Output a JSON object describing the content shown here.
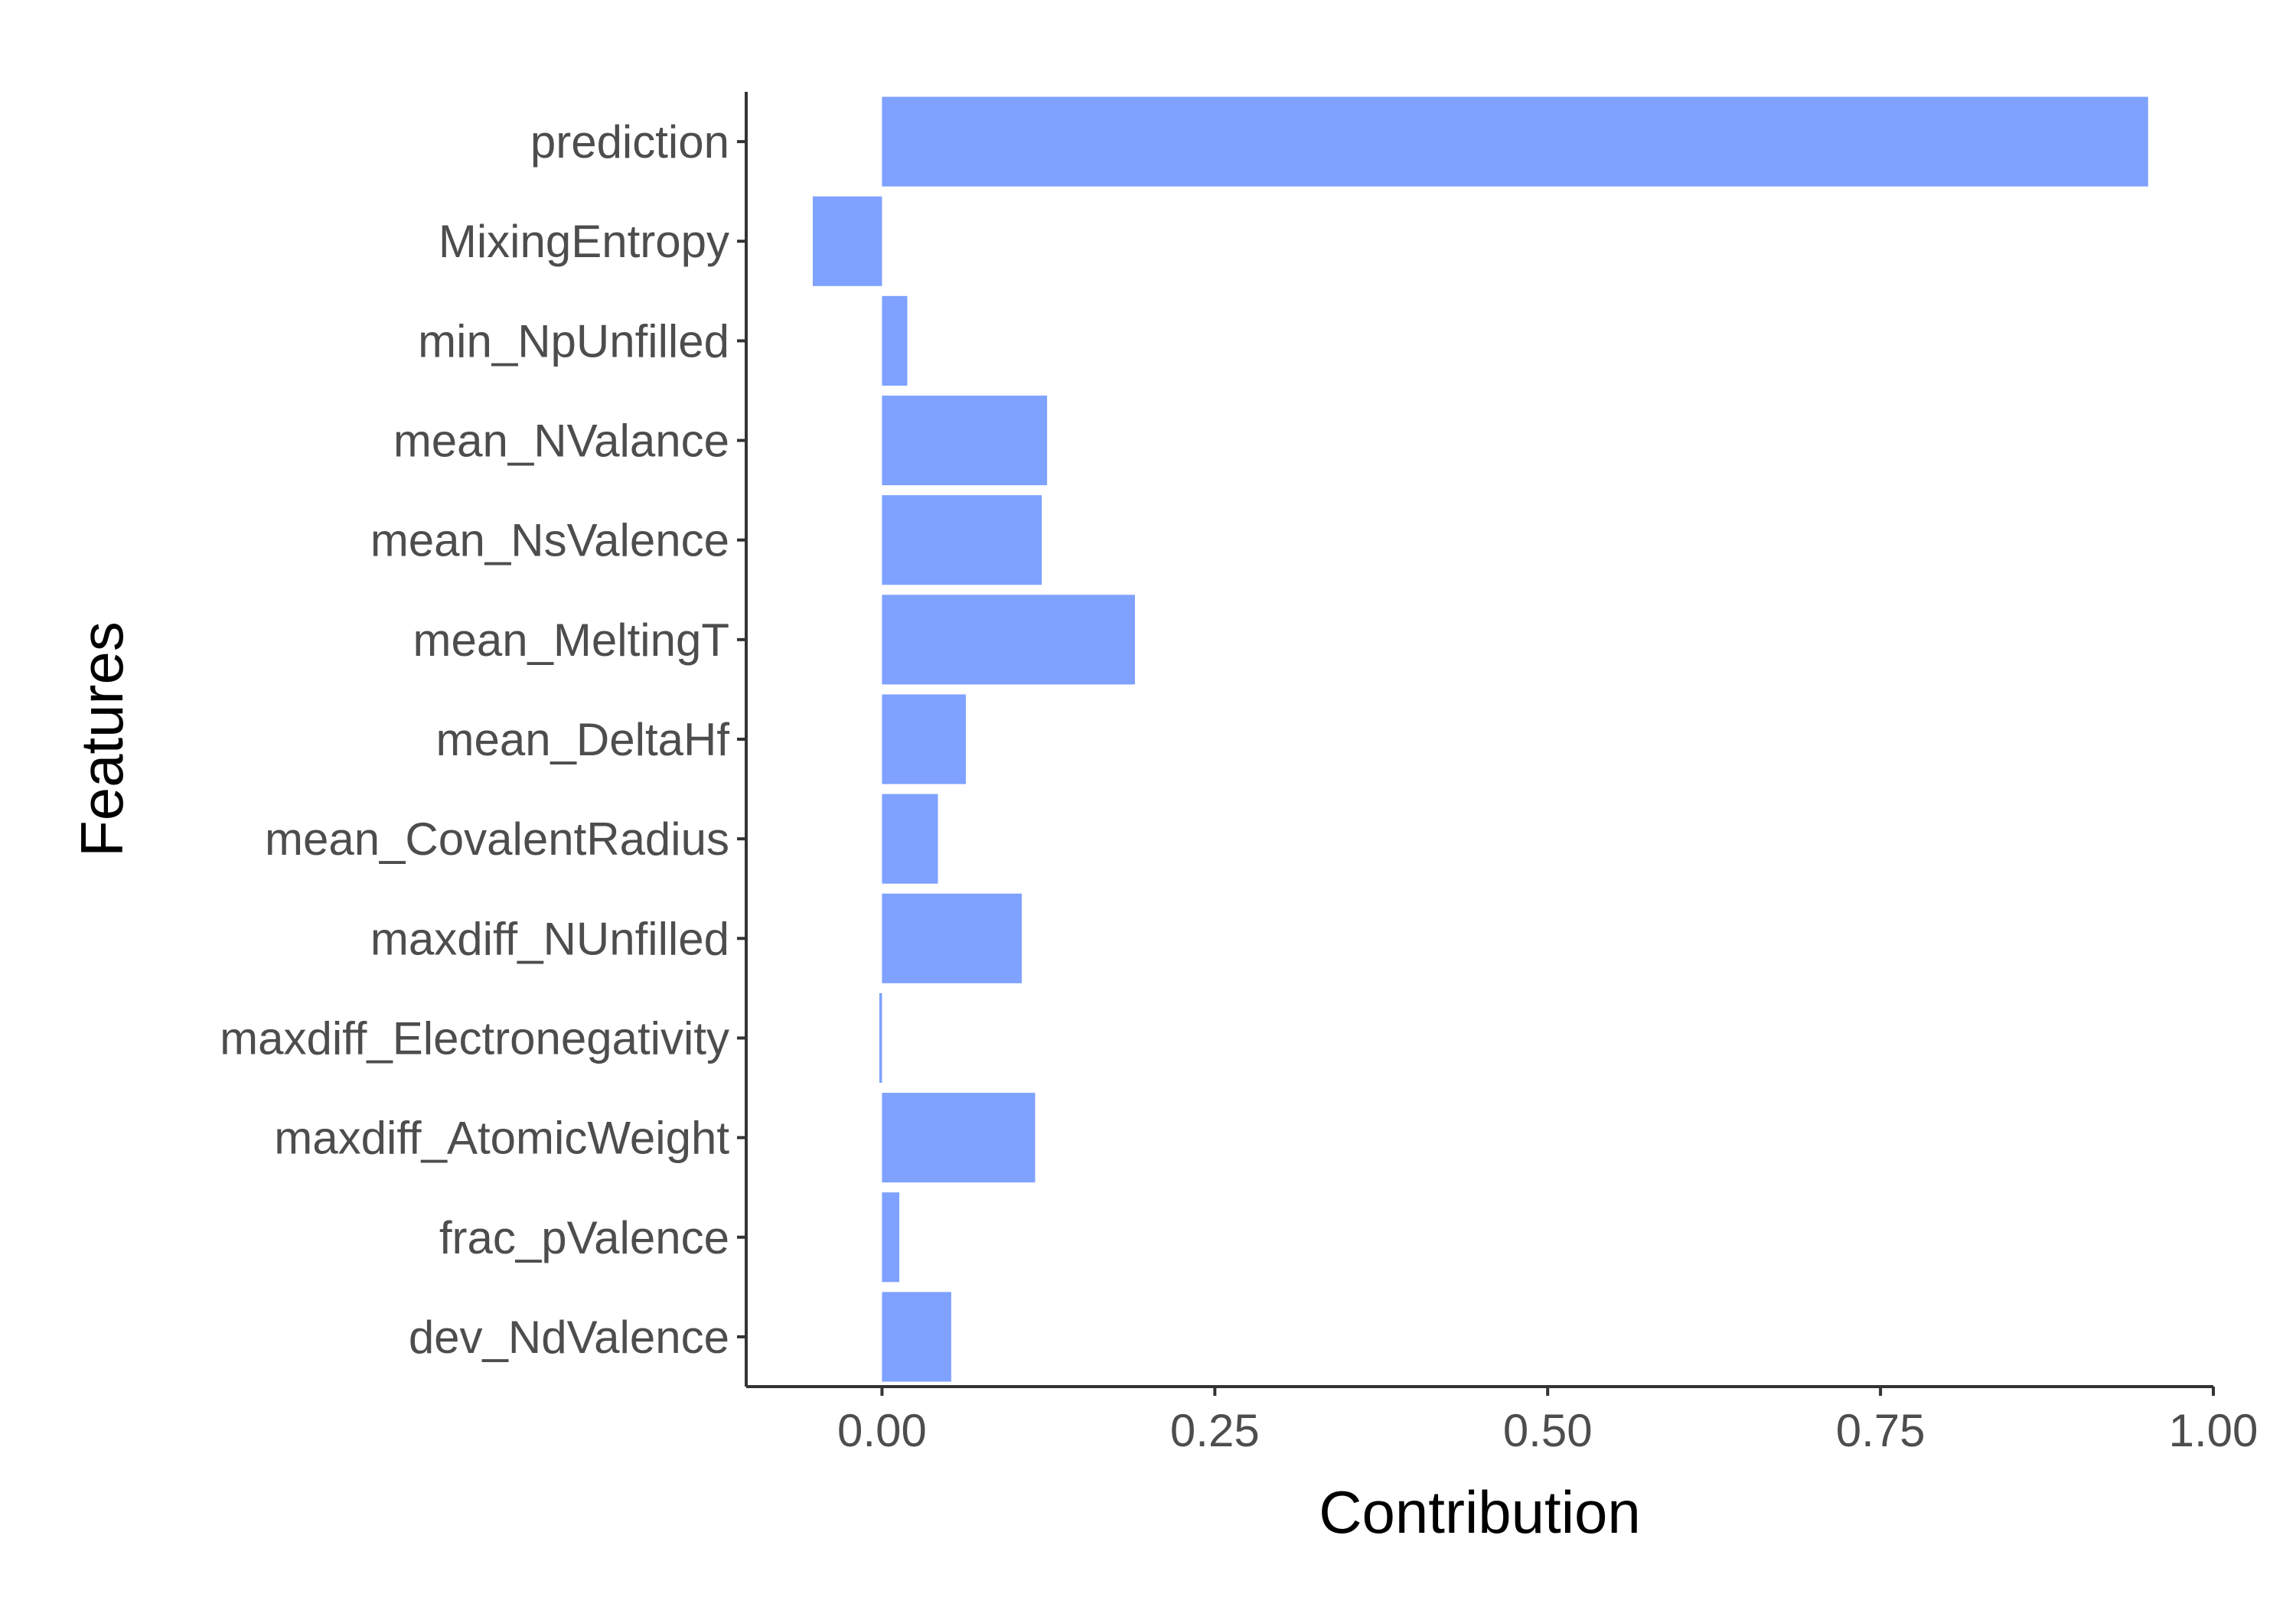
{
  "chart_data": {
    "type": "bar",
    "orientation": "horizontal",
    "title": "",
    "xlabel": "Contribution",
    "ylabel": "Features",
    "categories": [
      "prediction",
      "MixingEntropy",
      "min_NpUnfilled",
      "mean_NValance",
      "mean_NsValence",
      "mean_MeltingT",
      "mean_DeltaHf",
      "mean_CovalentRadius",
      "maxdiff_NUnfilled",
      "maxdiff_Electronegativity",
      "maxdiff_AtomicWeight",
      "frac_pValence",
      "dev_NdValence"
    ],
    "values": [
      0.951,
      -0.052,
      0.019,
      0.124,
      0.12,
      0.19,
      0.063,
      0.042,
      0.105,
      -0.002,
      0.115,
      0.013,
      0.052
    ],
    "xlim": [
      -0.102,
      1.0
    ],
    "xticks": [
      0.0,
      0.25,
      0.5,
      0.75,
      1.0
    ],
    "xtick_labels": [
      "0.00",
      "0.25",
      "0.50",
      "0.75",
      "1.00"
    ],
    "bar_color": "#7fa1ff",
    "grid": false,
    "legend": "none"
  }
}
